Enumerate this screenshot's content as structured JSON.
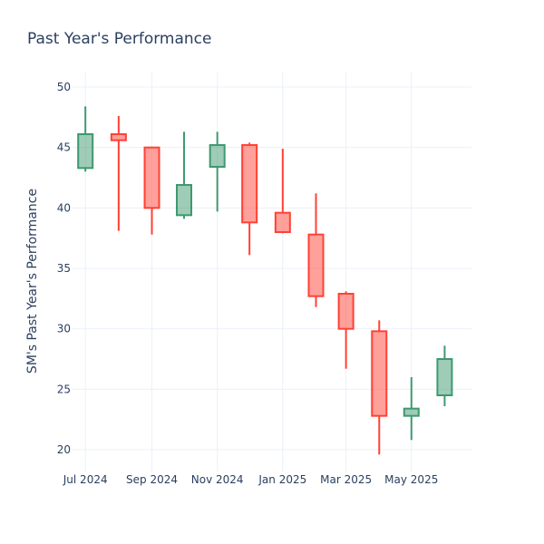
{
  "chart_data": {
    "type": "candlestick",
    "title": "Past Year's Performance",
    "xlabel": "",
    "ylabel": "SM's Past Year's Performance",
    "ylim": [
      18.2,
      51.2
    ],
    "y_ticks": [
      20,
      25,
      30,
      35,
      40,
      45,
      50
    ],
    "x_ticks": [
      {
        "label": "Jul 2024",
        "date": "2024-07-01"
      },
      {
        "label": "Sep 2024",
        "date": "2024-09-01"
      },
      {
        "label": "Nov 2024",
        "date": "2024-11-01"
      },
      {
        "label": "Jan 2025",
        "date": "2025-01-01"
      },
      {
        "label": "Mar 2025",
        "date": "2025-03-01"
      },
      {
        "label": "May 2025",
        "date": "2025-05-01"
      }
    ],
    "xlim": [
      "2024-06-19",
      "2025-06-26"
    ],
    "grid": true,
    "colors": {
      "increasing": "#3d9970",
      "decreasing": "#ff4136"
    },
    "candles": [
      {
        "date": "2024-07-01",
        "open": 43.3,
        "high": 48.4,
        "low": 43.0,
        "close": 46.1
      },
      {
        "date": "2024-08-01",
        "open": 46.1,
        "high": 47.6,
        "low": 38.1,
        "close": 45.6
      },
      {
        "date": "2024-09-01",
        "open": 45.0,
        "high": 45.0,
        "low": 37.8,
        "close": 40.0
      },
      {
        "date": "2024-10-01",
        "open": 39.4,
        "high": 46.3,
        "low": 39.1,
        "close": 41.9
      },
      {
        "date": "2024-11-01",
        "open": 43.4,
        "high": 46.3,
        "low": 39.7,
        "close": 45.2
      },
      {
        "date": "2024-12-01",
        "open": 45.2,
        "high": 45.4,
        "low": 36.1,
        "close": 38.8
      },
      {
        "date": "2025-01-01",
        "open": 39.6,
        "high": 44.9,
        "low": 37.9,
        "close": 38.0
      },
      {
        "date": "2025-02-01",
        "open": 37.8,
        "high": 41.2,
        "low": 31.8,
        "close": 32.7
      },
      {
        "date": "2025-03-01",
        "open": 32.9,
        "high": 33.1,
        "low": 26.7,
        "close": 30.0
      },
      {
        "date": "2025-04-01",
        "open": 29.8,
        "high": 30.7,
        "low": 19.6,
        "close": 22.8
      },
      {
        "date": "2025-05-01",
        "open": 22.8,
        "high": 26.0,
        "low": 20.8,
        "close": 23.4
      },
      {
        "date": "2025-06-01",
        "open": 24.5,
        "high": 28.6,
        "low": 23.6,
        "close": 27.5
      }
    ]
  }
}
